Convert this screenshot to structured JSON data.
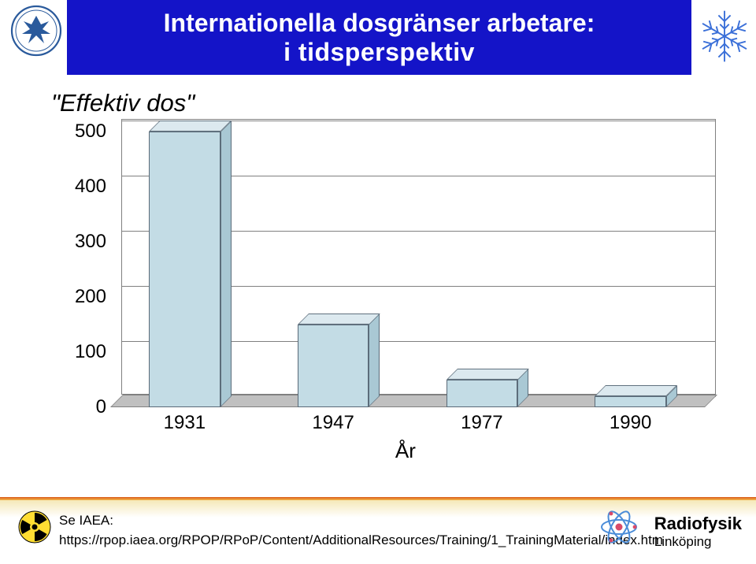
{
  "header": {
    "title_line1": "Internationella dosgränser arbetare:",
    "title_line2": "i tidsperspektiv",
    "title_bg": "#1414c8",
    "title_color": "#ffffff",
    "title_fontsize": 32,
    "left_logo": "linkoping-university-seal",
    "right_logo": "snowflake-emblem"
  },
  "chart": {
    "type": "bar-3d",
    "series_title": "\"Effektiv dos\"",
    "categories": [
      "1931",
      "1947",
      "1977",
      "1990"
    ],
    "values": [
      500,
      150,
      50,
      20
    ],
    "bar_front_color": "#c3dce5",
    "bar_top_color": "#dce9ef",
    "bar_side_color": "#a9c8d4",
    "bar_border_color": "#5a6a78",
    "floor_color": "#c0c0c0",
    "grid_color": "#808080",
    "background_color": "#ffffff",
    "ylim": [
      0,
      500
    ],
    "ytick_step": 100,
    "yticks": [
      "0",
      "100",
      "200",
      "300",
      "400",
      "500"
    ],
    "xlabel": "År",
    "label_fontsize": 26,
    "tick_fontsize": 24,
    "bar_width": 0.48,
    "depth_offset": 14
  },
  "footer": {
    "ref_label": "Se IAEA:",
    "ref_url": "https://rpop.iaea.org/RPOP/RPoP/Content/AdditionalResources/Training/1_TrainingMaterial/index.htm",
    "gradient_top": "#d85a1a",
    "gradient_mid": "#f5b84a",
    "gradient_fade": "#f5e8b8",
    "trefoil_icon": "radiation-trefoil",
    "right_text_line1": "Radiofysik",
    "right_text_line2": "Linköping",
    "right_logo": "atom-icon"
  }
}
